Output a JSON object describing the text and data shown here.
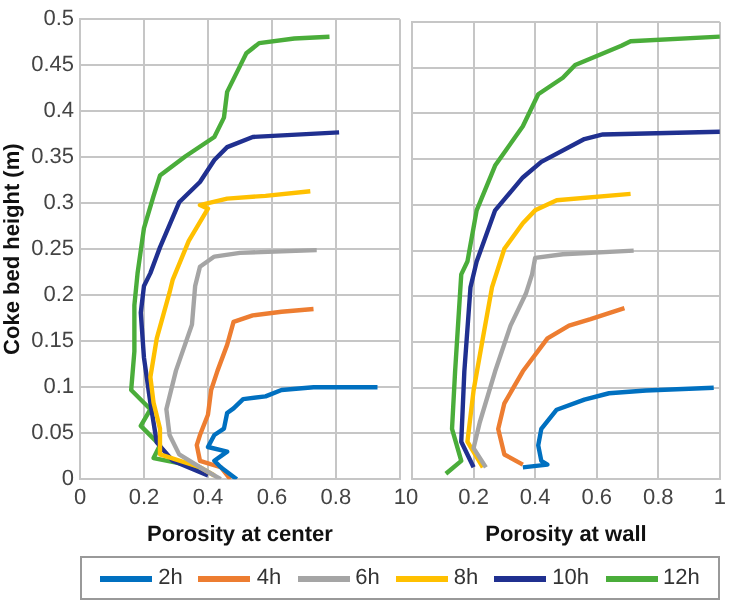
{
  "chart_data": [
    {
      "type": "line",
      "xlabel": "Porosity at center",
      "ylabel": "Coke bed height (m)",
      "xlim": [
        0,
        1
      ],
      "xticks": [
        0,
        0.2,
        0.4,
        0.6,
        0.8,
        1
      ],
      "ylim": [
        0,
        0.5
      ],
      "yticks": [
        0,
        0.05,
        0.1,
        0.15,
        0.2,
        0.25,
        0.3,
        0.35,
        0.4,
        0.45,
        0.5
      ],
      "grid": true,
      "legend": "bottom",
      "series": [
        {
          "name": "2h",
          "color": "#0070c0",
          "x": [
            0.49,
            0.44,
            0.42,
            0.46,
            0.4,
            0.42,
            0.45,
            0.46,
            0.48,
            0.51,
            0.58,
            0.63,
            0.73,
            0.93
          ],
          "values": [
            0,
            0.013,
            0.02,
            0.03,
            0.035,
            0.048,
            0.055,
            0.072,
            0.077,
            0.087,
            0.09,
            0.097,
            0.1,
            0.1
          ]
        },
        {
          "name": "4h",
          "color": "#ed7d31",
          "x": [
            0.47,
            0.44,
            0.375,
            0.365,
            0.375,
            0.4,
            0.41,
            0.43,
            0.46,
            0.48,
            0.54,
            0.63,
            0.73
          ],
          "values": [
            0,
            0.013,
            0.02,
            0.037,
            0.048,
            0.07,
            0.097,
            0.118,
            0.146,
            0.171,
            0.178,
            0.182,
            0.185
          ]
        },
        {
          "name": "6h",
          "color": "#a5a5a5",
          "x": [
            0.44,
            0.375,
            0.31,
            0.28,
            0.27,
            0.3,
            0.35,
            0.36,
            0.375,
            0.42,
            0.5,
            0.74
          ],
          "values": [
            0,
            0.013,
            0.027,
            0.048,
            0.076,
            0.118,
            0.168,
            0.21,
            0.231,
            0.242,
            0.246,
            0.249
          ]
        },
        {
          "name": "8h",
          "color": "#ffc000",
          "x": [
            0.42,
            0.375,
            0.25,
            0.25,
            0.23,
            0.22,
            0.24,
            0.28,
            0.29,
            0.34,
            0.4,
            0.375,
            0.46,
            0.58,
            0.72
          ],
          "values": [
            0.004,
            0.013,
            0.027,
            0.055,
            0.083,
            0.111,
            0.153,
            0.203,
            0.217,
            0.259,
            0.294,
            0.298,
            0.305,
            0.308,
            0.313
          ]
        },
        {
          "name": "10h",
          "color": "#203090",
          "x": [
            0.4,
            0.29,
            0.24,
            0.22,
            0.2,
            0.19,
            0.2,
            0.22,
            0.25,
            0.31,
            0.375,
            0.42,
            0.46,
            0.54,
            0.81
          ],
          "values": [
            0.004,
            0.02,
            0.04,
            0.083,
            0.132,
            0.181,
            0.21,
            0.224,
            0.252,
            0.301,
            0.323,
            0.347,
            0.361,
            0.372,
            0.377
          ]
        },
        {
          "name": "12h",
          "color": "#4aad3a",
          "x": [
            0.375,
            0.23,
            0.25,
            0.19,
            0.22,
            0.16,
            0.17,
            0.17,
            0.18,
            0.2,
            0.23,
            0.25,
            0.33,
            0.42,
            0.45,
            0.46,
            0.5,
            0.52,
            0.56,
            0.67,
            0.78
          ],
          "values": [
            0.013,
            0.023,
            0.037,
            0.058,
            0.076,
            0.097,
            0.139,
            0.189,
            0.224,
            0.273,
            0.308,
            0.33,
            0.351,
            0.372,
            0.393,
            0.421,
            0.449,
            0.463,
            0.474,
            0.479,
            0.481
          ]
        }
      ]
    },
    {
      "type": "line",
      "xlabel": "Porosity at wall",
      "xlim": [
        0,
        1
      ],
      "xticks": [
        0,
        0.2,
        0.4,
        0.6,
        0.8,
        1
      ],
      "ylim": [
        0,
        0.5
      ],
      "yticks": [
        0,
        0.05,
        0.1,
        0.15,
        0.2,
        0.25,
        0.3,
        0.35,
        0.4,
        0.45,
        0.5
      ],
      "tick_labels": "x",
      "grid": true,
      "series": [
        {
          "color": "#0070c0",
          "x": [
            0.36,
            0.44,
            0.42,
            0.41,
            0.42,
            0.47,
            0.56,
            0.64,
            0.76,
            0.98
          ],
          "values": [
            0.013,
            0.016,
            0.02,
            0.037,
            0.055,
            0.076,
            0.087,
            0.094,
            0.097,
            0.1
          ]
        },
        {
          "color": "#ed7d31",
          "x": [
            0.36,
            0.3,
            0.28,
            0.3,
            0.36,
            0.44,
            0.51,
            0.58,
            0.69
          ],
          "values": [
            0.016,
            0.027,
            0.055,
            0.083,
            0.118,
            0.154,
            0.168,
            0.175,
            0.187
          ]
        },
        {
          "color": "#a5a5a5",
          "x": [
            0.24,
            0.2,
            0.22,
            0.27,
            0.32,
            0.37,
            0.39,
            0.4,
            0.49,
            0.72
          ],
          "values": [
            0.013,
            0.034,
            0.062,
            0.118,
            0.168,
            0.203,
            0.224,
            0.242,
            0.246,
            0.25
          ]
        },
        {
          "color": "#ffc000",
          "x": [
            0.23,
            0.18,
            0.2,
            0.23,
            0.26,
            0.3,
            0.36,
            0.4,
            0.47,
            0.71
          ],
          "values": [
            0.013,
            0.041,
            0.097,
            0.154,
            0.21,
            0.252,
            0.28,
            0.294,
            0.305,
            0.312
          ]
        },
        {
          "color": "#203090",
          "x": [
            0.2,
            0.16,
            0.17,
            0.19,
            0.21,
            0.27,
            0.36,
            0.42,
            0.56,
            0.62,
            1
          ],
          "values": [
            0.013,
            0.041,
            0.118,
            0.21,
            0.238,
            0.294,
            0.33,
            0.347,
            0.372,
            0.377,
            0.38
          ]
        },
        {
          "color": "#4aad3a",
          "x": [
            0.11,
            0.16,
            0.13,
            0.14,
            0.16,
            0.18,
            0.21,
            0.27,
            0.36,
            0.41,
            0.49,
            0.53,
            0.68,
            0.71,
            1
          ],
          "values": [
            0.006,
            0.02,
            0.055,
            0.118,
            0.224,
            0.238,
            0.294,
            0.343,
            0.386,
            0.421,
            0.439,
            0.453,
            0.474,
            0.479,
            0.484
          ]
        }
      ]
    }
  ]
}
